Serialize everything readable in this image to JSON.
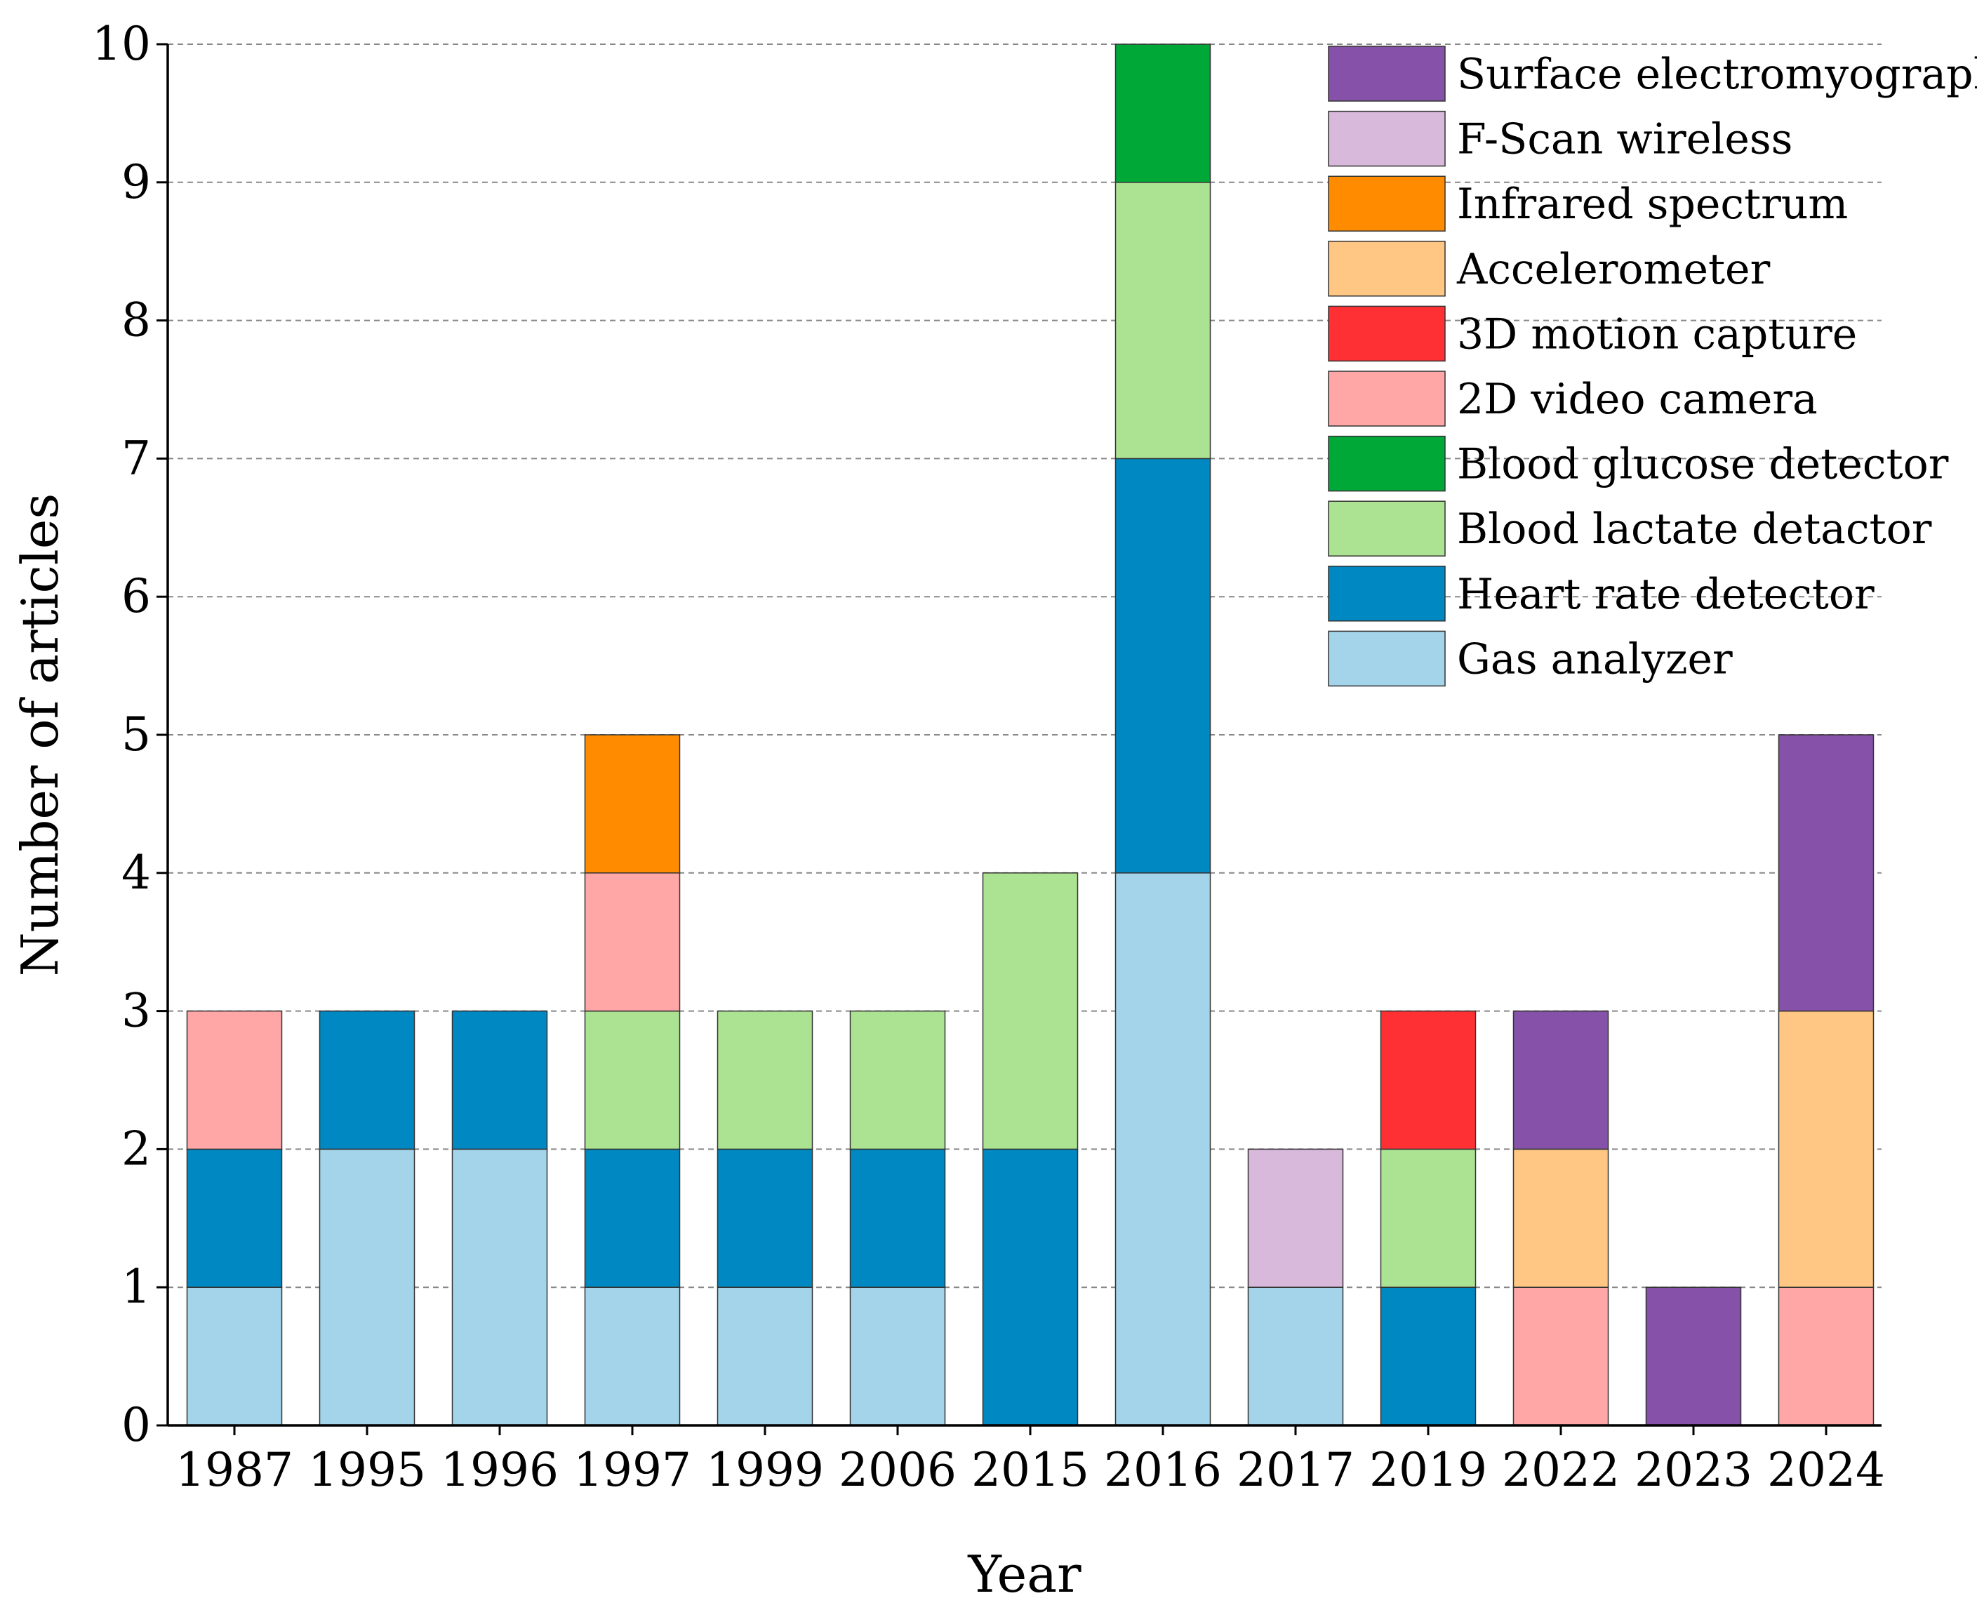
{
  "chart_data": {
    "type": "bar",
    "stacked": true,
    "title": "",
    "xlabel": "Year",
    "ylabel": "Number of articles",
    "ylim": [
      0,
      10
    ],
    "yticks": [
      0,
      1,
      2,
      3,
      4,
      5,
      6,
      7,
      8,
      9,
      10
    ],
    "grid": "horizontal dashed",
    "legend_position": "top-right",
    "categories": [
      "1987",
      "1995",
      "1996",
      "1997",
      "1999",
      "2006",
      "2015",
      "2016",
      "2017",
      "2019",
      "2022",
      "2023",
      "2024"
    ],
    "series": [
      {
        "name": "Gas analyzer",
        "color": "#A3D4EA",
        "values": [
          1,
          2,
          2,
          1,
          1,
          1,
          0,
          4,
          1,
          0,
          0,
          0,
          0
        ]
      },
      {
        "name": "Heart rate detector",
        "color": "#0088C2",
        "values": [
          1,
          1,
          1,
          1,
          1,
          1,
          2,
          3,
          0,
          1,
          0,
          0,
          0
        ]
      },
      {
        "name": "Blood lactate detactor",
        "color": "#ACE393",
        "values": [
          0,
          0,
          0,
          1,
          1,
          1,
          2,
          2,
          0,
          1,
          0,
          0,
          0
        ]
      },
      {
        "name": "Blood glucose detector",
        "color": "#00A838",
        "values": [
          0,
          0,
          0,
          0,
          0,
          0,
          0,
          1,
          0,
          0,
          0,
          0,
          0
        ]
      },
      {
        "name": "2D video camera",
        "color": "#FFA6A6",
        "values": [
          1,
          0,
          0,
          1,
          0,
          0,
          0,
          0,
          0,
          0,
          1,
          0,
          1
        ]
      },
      {
        "name": "3D motion capture",
        "color": "#FF3033",
        "values": [
          0,
          0,
          0,
          0,
          0,
          0,
          0,
          0,
          0,
          1,
          0,
          0,
          0
        ]
      },
      {
        "name": "Accelerometer",
        "color": "#FFC783",
        "values": [
          0,
          0,
          0,
          0,
          0,
          0,
          0,
          0,
          0,
          0,
          1,
          0,
          2
        ]
      },
      {
        "name": "Infrared spectrum",
        "color": "#FF8C00",
        "values": [
          0,
          0,
          0,
          1,
          0,
          0,
          0,
          0,
          0,
          0,
          0,
          0,
          0
        ]
      },
      {
        "name": "F-Scan wireless",
        "color": "#D8B8DB",
        "values": [
          0,
          0,
          0,
          0,
          0,
          0,
          0,
          0,
          1,
          0,
          0,
          0,
          0
        ]
      },
      {
        "name": "Surface electromyography",
        "color": "#8651A8",
        "values": [
          0,
          0,
          0,
          0,
          0,
          0,
          0,
          0,
          0,
          0,
          1,
          1,
          2
        ]
      }
    ]
  }
}
